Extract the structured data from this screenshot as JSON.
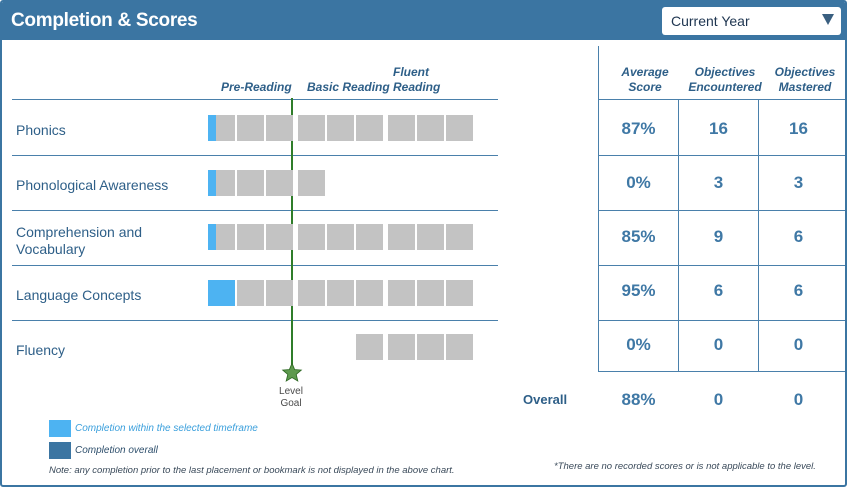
{
  "header": {
    "title": "Completion & Scores",
    "year_select": {
      "value": "Current Year",
      "icon": "caret-down-icon"
    }
  },
  "levels": [
    {
      "label": "Pre-Reading"
    },
    {
      "label": "Basic Reading"
    },
    {
      "label": "Fluent Reading"
    }
  ],
  "score_columns": [
    {
      "label": "Average Score"
    },
    {
      "label": "Objectives Encountered"
    },
    {
      "label": "Objectives Mastered"
    }
  ],
  "rows": [
    {
      "label": "Phonics",
      "average_score": "87%",
      "encountered": "16",
      "mastered": "16",
      "cells": {
        "pre_reading": 3,
        "basic_reading": 3,
        "fluent_reading": 3
      },
      "completion_within_timeframe_cells": 0.3
    },
    {
      "label": "Phonological Awareness",
      "average_score": "0%",
      "encountered": "3",
      "mastered": "3",
      "cells": {
        "pre_reading": 3,
        "basic_reading": 1,
        "fluent_reading": 0
      },
      "completion_within_timeframe_cells": 0.3
    },
    {
      "label": "Comprehension and Vocabulary",
      "average_score": "85%",
      "encountered": "9",
      "mastered": "6",
      "cells": {
        "pre_reading": 3,
        "basic_reading": 3,
        "fluent_reading": 3
      },
      "completion_within_timeframe_cells": 0.3
    },
    {
      "label": "Language Concepts",
      "average_score": "95%",
      "encountered": "6",
      "mastered": "6",
      "cells": {
        "pre_reading": 3,
        "basic_reading": 3,
        "fluent_reading": 3
      },
      "completion_within_timeframe_cells": 1
    },
    {
      "label": "Fluency",
      "average_score": "0%",
      "encountered": "0",
      "mastered": "0",
      "cells": {
        "pre_reading": 0,
        "basic_reading": 1,
        "fluent_reading": 3
      },
      "completion_within_timeframe_cells": 0
    }
  ],
  "level_goal": {
    "label": "Level Goal",
    "icon": "star-icon"
  },
  "overall": {
    "label": "Overall",
    "average_score": "88%",
    "encountered": "0",
    "mastered": "0"
  },
  "legend": [
    {
      "label": "Completion within the selected timeframe",
      "color": "#4db3f2"
    },
    {
      "label": "Completion overall",
      "color": "#3b75a2"
    }
  ],
  "notes": {
    "left": "Note: any completion prior to the last placement or bookmark is not displayed in the above chart.",
    "right": "*There are no recorded scores or is not applicable to the level."
  },
  "colors": {
    "header": "#3b75a2",
    "cell_empty": "#c3c3c3",
    "goal_line": "#2f7d2a",
    "text": "#2e5f88"
  }
}
